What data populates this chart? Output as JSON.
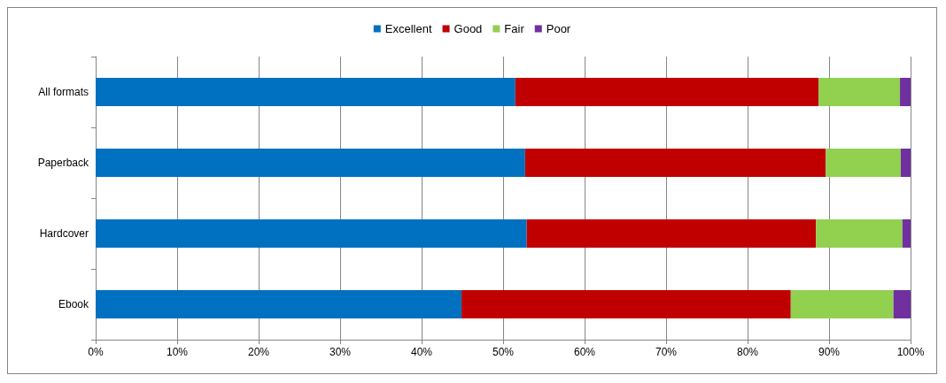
{
  "chart_data": {
    "type": "bar",
    "orientation": "horizontal",
    "stacked": true,
    "legend": "top",
    "grid": "x",
    "categories": [
      "All formats",
      "Paperback",
      "Hardcover",
      "Ebook"
    ],
    "series": [
      {
        "name": "Excellent",
        "color": "#0070c0",
        "values": [
          51.5,
          52.7,
          52.9,
          44.9
        ]
      },
      {
        "name": "Good",
        "color": "#c00000",
        "values": [
          37.2,
          36.9,
          35.5,
          40.4
        ]
      },
      {
        "name": "Fair",
        "color": "#92d050",
        "values": [
          10.0,
          9.2,
          10.6,
          12.6
        ]
      },
      {
        "name": "Poor",
        "color": "#7030a0",
        "values": [
          1.3,
          1.2,
          1.0,
          2.1
        ]
      }
    ],
    "xlim": [
      0,
      100
    ],
    "xticks": [
      {
        "value": 0,
        "label": "0%"
      },
      {
        "value": 10,
        "label": "10%"
      },
      {
        "value": 20,
        "label": "20%"
      },
      {
        "value": 30,
        "label": "30%"
      },
      {
        "value": 40,
        "label": "40%"
      },
      {
        "value": 50,
        "label": "50%"
      },
      {
        "value": 60,
        "label": "60%"
      },
      {
        "value": 70,
        "label": "70%"
      },
      {
        "value": 80,
        "label": "80%"
      },
      {
        "value": 90,
        "label": "90%"
      },
      {
        "value": 100,
        "label": "100%"
      }
    ]
  }
}
